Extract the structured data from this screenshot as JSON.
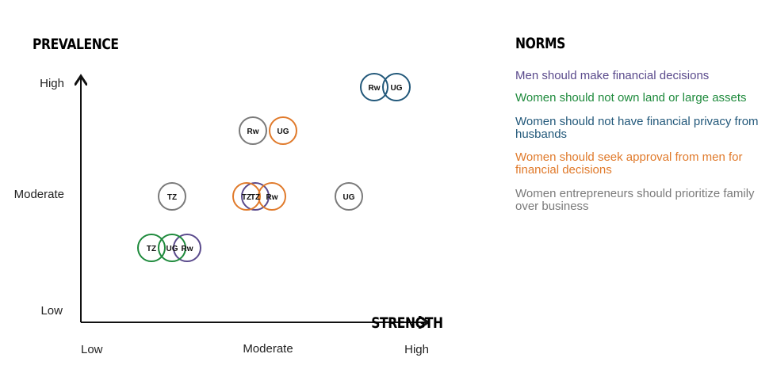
{
  "title": "PREVALENCE",
  "x_axis": {
    "title": "STRENGTH",
    "labels": [
      "Low",
      "Moderate",
      "High"
    ]
  },
  "y_axis": {
    "labels": [
      "High",
      "Moderate",
      "Low"
    ]
  },
  "legend": {
    "title": "NORMS",
    "norms": [
      {
        "text": "Men should make financial decisions",
        "color": "#5a4a8c",
        "markers": [
          "Rw",
          "TZ"
        ]
      },
      {
        "text": "Women should not own land or large assets",
        "color": "#1e8a3c",
        "markers": [
          "TZ",
          "UG"
        ]
      },
      {
        "text": "Women should not have financial privacy from husbands",
        "color": "#22587a",
        "markers": [
          "Rw",
          "UG"
        ]
      },
      {
        "text": "Women should seek approval from men for financial decisions",
        "color": "#e07a2b",
        "markers": [
          "UG",
          "TZ",
          "Rw"
        ]
      },
      {
        "text": "Women entrepreneurs should prioritize family over business",
        "color": "#7a7a7a",
        "markers": [
          "Rw",
          "TZ",
          "UG"
        ]
      }
    ]
  }
}
